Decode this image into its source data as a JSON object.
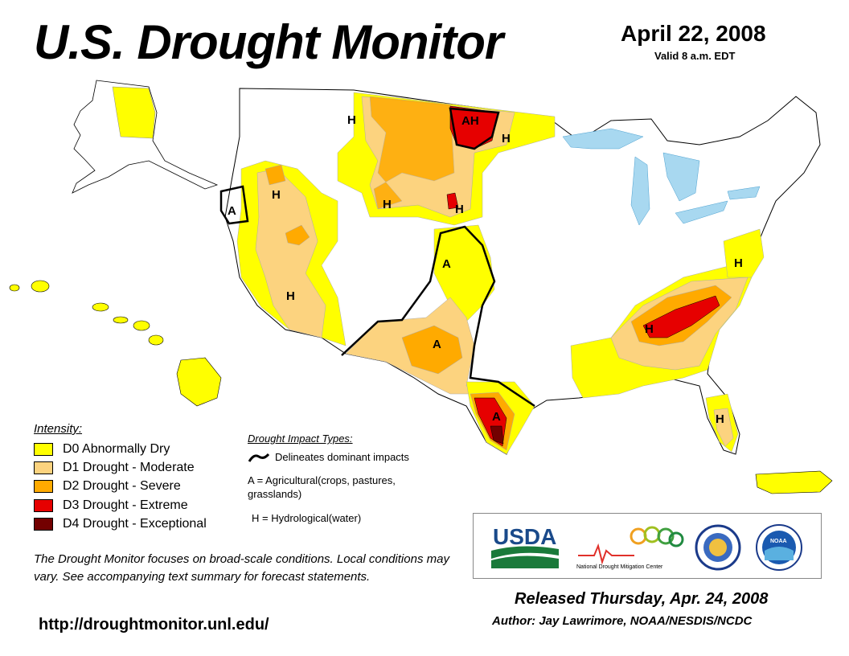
{
  "header": {
    "title": "U.S. Drought Monitor",
    "date": "April 22, 2008",
    "valid": "Valid 8 a.m. EDT"
  },
  "colors": {
    "d0": "#ffff00",
    "d1": "#fcd37f",
    "d2": "#ffaa00",
    "d3": "#e60000",
    "d4": "#730000",
    "water": "#a8d8f0",
    "border": "#000000"
  },
  "map_labels": {
    "h_idaho": "H",
    "h_oregon": "H",
    "a_california": "A",
    "h_nevada": "H",
    "h_wyoming": "H",
    "h_sdakota": "H",
    "ah_ndakota": "AH",
    "h_minnesota": "H",
    "a_colorado": "A",
    "a_texas_west": "A",
    "a_texas_south": "A",
    "h_tennessee": "H",
    "h_virginia": "H",
    "h_florida": "H"
  },
  "legend": {
    "title": "Intensity:",
    "items": [
      {
        "code": "D0",
        "label": "D0 Abnormally Dry",
        "color": "#ffff00"
      },
      {
        "code": "D1",
        "label": "D1 Drought - Moderate",
        "color": "#fcd37f"
      },
      {
        "code": "D2",
        "label": "D2 Drought - Severe",
        "color": "#ffaa00"
      },
      {
        "code": "D3",
        "label": "D3 Drought - Extreme",
        "color": "#e60000"
      },
      {
        "code": "D4",
        "label": "D4 Drought - Exceptional",
        "color": "#730000"
      }
    ]
  },
  "impacts": {
    "title": "Drought Impact Types:",
    "line": "Delineates dominant impacts",
    "agricultural": "A = Agricultural(crops, pastures, grasslands)",
    "hydrological": "H = Hydrological(water)"
  },
  "note": "The Drought Monitor focuses on broad-scale conditions. Local conditions may vary. See accompanying text summary for forecast statements.",
  "url": "http://droughtmonitor.unl.edu/",
  "logos": {
    "usda": "USDA",
    "ndmc": "National Drought Mitigation Center",
    "doc_icon": "commerce-seal",
    "noaa": "NOAA"
  },
  "footer": {
    "released": "Released Thursday, Apr. 24, 2008",
    "author": "Author: Jay Lawrimore, NOAA/NESDIS/NCDC"
  }
}
